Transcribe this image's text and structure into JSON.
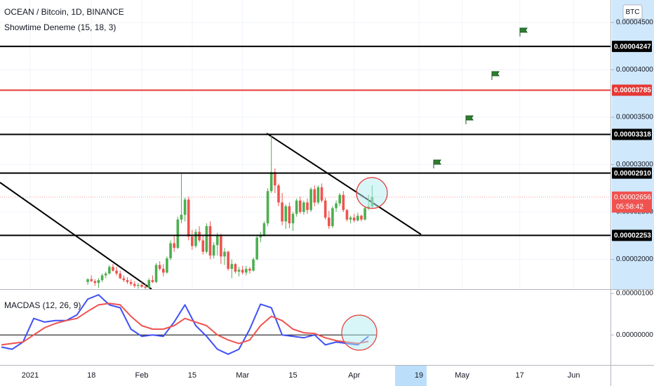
{
  "chart_data": [
    {
      "type": "candlestick",
      "title": "OCEAN / Bitcoin, 1D, BINANCE",
      "indicator": "Showtime Deneme (15, 18, 3)",
      "axis_unit": "BTC",
      "up_color": "#4caf50",
      "down_color": "#ef5350",
      "x": [
        "2021-01-17",
        "2021-01-18",
        "2021-01-19",
        "2021-01-20",
        "2021-01-21",
        "2021-01-22",
        "2021-01-23",
        "2021-01-24",
        "2021-01-25",
        "2021-01-26",
        "2021-01-27",
        "2021-01-28",
        "2021-01-29",
        "2021-01-30",
        "2021-01-31",
        "2021-02-01",
        "2021-02-02",
        "2021-02-03",
        "2021-02-04",
        "2021-02-05",
        "2021-02-06",
        "2021-02-07",
        "2021-02-08",
        "2021-02-09",
        "2021-02-10",
        "2021-02-11",
        "2021-02-12",
        "2021-02-13",
        "2021-02-14",
        "2021-02-15",
        "2021-02-16",
        "2021-02-17",
        "2021-02-18",
        "2021-02-19",
        "2021-02-20",
        "2021-02-21",
        "2021-02-22",
        "2021-02-23",
        "2021-02-24",
        "2021-02-25",
        "2021-02-26",
        "2021-02-27",
        "2021-02-28",
        "2021-03-01",
        "2021-03-02",
        "2021-03-03",
        "2021-03-04",
        "2021-03-05",
        "2021-03-06",
        "2021-03-07",
        "2021-03-08",
        "2021-03-09",
        "2021-03-10",
        "2021-03-11",
        "2021-03-12",
        "2021-03-13",
        "2021-03-14",
        "2021-03-15",
        "2021-03-16",
        "2021-03-17",
        "2021-03-18",
        "2021-03-19",
        "2021-03-20",
        "2021-03-21",
        "2021-03-22",
        "2021-03-23",
        "2021-03-24",
        "2021-03-25",
        "2021-03-26",
        "2021-03-27",
        "2021-03-28",
        "2021-03-29",
        "2021-03-30",
        "2021-03-31",
        "2021-04-01",
        "2021-04-02",
        "2021-04-03",
        "2021-04-04",
        "2021-04-05",
        "2021-04-06"
      ],
      "ohlc": [
        [
          1.76e-05,
          1.8e-05,
          1.73e-05,
          1.79e-05
        ],
        [
          1.79e-05,
          1.83e-05,
          1.76e-05,
          1.77e-05
        ],
        [
          1.77e-05,
          1.79e-05,
          1.72e-05,
          1.75e-05
        ],
        [
          1.75e-05,
          1.8e-05,
          1.7e-05,
          1.78e-05
        ],
        [
          1.78e-05,
          1.85e-05,
          1.76e-05,
          1.83e-05
        ],
        [
          1.83e-05,
          1.87e-05,
          1.8e-05,
          1.85e-05
        ],
        [
          1.85e-05,
          1.94e-05,
          1.84e-05,
          1.92e-05
        ],
        [
          1.92e-05,
          1.95e-05,
          1.87e-05,
          1.88e-05
        ],
        [
          1.88e-05,
          1.92e-05,
          1.83e-05,
          1.85e-05
        ],
        [
          1.85e-05,
          1.88e-05,
          1.79e-05,
          1.8e-05
        ],
        [
          1.8e-05,
          1.83e-05,
          1.76e-05,
          1.78e-05
        ],
        [
          1.78e-05,
          1.81e-05,
          1.74e-05,
          1.76e-05
        ],
        [
          1.76e-05,
          1.79e-05,
          1.72e-05,
          1.74e-05
        ],
        [
          1.74e-05,
          1.77e-05,
          1.7e-05,
          1.72e-05
        ],
        [
          1.72e-05,
          1.75e-05,
          1.69e-05,
          1.73e-05
        ],
        [
          1.73e-05,
          1.76e-05,
          1.7e-05,
          1.71e-05
        ],
        [
          1.71e-05,
          1.74e-05,
          1.68e-05,
          1.7e-05
        ],
        [
          1.7e-05,
          1.8e-05,
          1.69e-05,
          1.78e-05
        ],
        [
          1.78e-05,
          1.83e-05,
          1.75e-05,
          1.76e-05
        ],
        [
          1.76e-05,
          1.96e-05,
          1.75e-05,
          1.94e-05
        ],
        [
          1.94e-05,
          1.98e-05,
          1.88e-05,
          1.9e-05
        ],
        [
          1.9e-05,
          1.95e-05,
          1.82e-05,
          1.86e-05
        ],
        [
          1.86e-05,
          2.03e-05,
          1.85e-05,
          2.01e-05
        ],
        [
          2.01e-05,
          2.2e-05,
          1.99e-05,
          2.17e-05
        ],
        [
          2.17e-05,
          2.26e-05,
          2.08e-05,
          2.12e-05
        ],
        [
          2.12e-05,
          2.45e-05,
          2.11e-05,
          2.42e-05
        ],
        [
          2.42e-05,
          2.9e-05,
          2.38e-05,
          2.47e-05
        ],
        [
          2.47e-05,
          2.65e-05,
          2.4e-05,
          2.63e-05
        ],
        [
          2.63e-05,
          2.66e-05,
          2.2e-05,
          2.24e-05
        ],
        [
          2.24e-05,
          2.31e-05,
          2.1e-05,
          2.14e-05
        ],
        [
          2.14e-05,
          2.32e-05,
          2.12e-05,
          2.29e-05
        ],
        [
          2.29e-05,
          2.35e-05,
          2.18e-05,
          2.2e-05
        ],
        [
          2.2e-05,
          2.26e-05,
          2.05e-05,
          2.08e-05
        ],
        [
          2.08e-05,
          2.38e-05,
          2.06e-05,
          2.35e-05
        ],
        [
          2.35e-05,
          2.4e-05,
          2e-05,
          2.04e-05
        ],
        [
          2.04e-05,
          2.18e-05,
          2.01e-05,
          2.15e-05
        ],
        [
          2.15e-05,
          2.28e-05,
          2.04e-05,
          2.25e-05
        ],
        [
          2.25e-05,
          2.27e-05,
          1.95e-05,
          2.03e-05
        ],
        [
          2.03e-05,
          2.12e-05,
          1.94e-05,
          2.08e-05
        ],
        [
          2.08e-05,
          2.09e-05,
          1.88e-05,
          1.9e-05
        ],
        [
          1.9e-05,
          2e-05,
          1.8e-05,
          1.95e-05
        ],
        [
          1.95e-05,
          1.96e-05,
          1.85e-05,
          1.87e-05
        ],
        [
          1.87e-05,
          1.92e-05,
          1.82e-05,
          1.89e-05
        ],
        [
          1.89e-05,
          1.93e-05,
          1.84e-05,
          1.86e-05
        ],
        [
          1.86e-05,
          1.93e-05,
          1.83e-05,
          1.9e-05
        ],
        [
          1.9e-05,
          1.92e-05,
          1.85e-05,
          1.88e-05
        ],
        [
          1.88e-05,
          2.02e-05,
          1.87e-05,
          2e-05
        ],
        [
          2e-05,
          2.25e-05,
          1.99e-05,
          2.23e-05
        ],
        [
          2.23e-05,
          2.29e-05,
          2.18e-05,
          2.26e-05
        ],
        [
          2.26e-05,
          2.4e-05,
          2.24e-05,
          2.38e-05
        ],
        [
          2.38e-05,
          2.75e-05,
          2.35e-05,
          2.72e-05
        ],
        [
          2.72e-05,
          3.31e-05,
          2.7e-05,
          2.92e-05
        ],
        [
          2.92e-05,
          2.96e-05,
          2.7e-05,
          2.78e-05
        ],
        [
          2.78e-05,
          2.8e-05,
          2.56e-05,
          2.6e-05
        ],
        [
          2.6e-05,
          2.7e-05,
          2.36e-05,
          2.4e-05
        ],
        [
          2.4e-05,
          2.58e-05,
          2.32e-05,
          2.56e-05
        ],
        [
          2.56e-05,
          2.6e-05,
          2.33e-05,
          2.38e-05
        ],
        [
          2.38e-05,
          2.5e-05,
          2.3e-05,
          2.48e-05
        ],
        [
          2.48e-05,
          2.64e-05,
          2.45e-05,
          2.62e-05
        ],
        [
          2.62e-05,
          2.66e-05,
          2.48e-05,
          2.5e-05
        ],
        [
          2.5e-05,
          2.62e-05,
          2.47e-05,
          2.6e-05
        ],
        [
          2.6e-05,
          2.64e-05,
          2.48e-05,
          2.52e-05
        ],
        [
          2.52e-05,
          2.76e-05,
          2.5e-05,
          2.74e-05
        ],
        [
          2.74e-05,
          2.78e-05,
          2.56e-05,
          2.6e-05
        ],
        [
          2.6e-05,
          2.78e-05,
          2.58e-05,
          2.76e-05
        ],
        [
          2.76e-05,
          2.8e-05,
          2.6e-05,
          2.62e-05
        ],
        [
          2.62e-05,
          2.65e-05,
          2.42e-05,
          2.44e-05
        ],
        [
          2.44e-05,
          2.51e-05,
          2.32e-05,
          2.35e-05
        ],
        [
          2.35e-05,
          2.56e-05,
          2.33e-05,
          2.54e-05
        ],
        [
          2.54e-05,
          2.62e-05,
          2.5e-05,
          2.59e-05
        ],
        [
          2.59e-05,
          2.7e-05,
          2.56e-05,
          2.68e-05
        ],
        [
          2.68e-05,
          2.72e-05,
          2.5e-05,
          2.52e-05
        ],
        [
          2.52e-05,
          2.53e-05,
          2.4e-05,
          2.42e-05
        ],
        [
          2.42e-05,
          2.46e-05,
          2.38e-05,
          2.44e-05
        ],
        [
          2.44e-05,
          2.48e-05,
          2.39e-05,
          2.41e-05
        ],
        [
          2.41e-05,
          2.49e-05,
          2.4e-05,
          2.46e-05
        ],
        [
          2.46e-05,
          2.47e-05,
          2.4e-05,
          2.42e-05
        ],
        [
          2.42e-05,
          2.56e-05,
          2.41e-05,
          2.54e-05
        ],
        [
          2.54e-05,
          2.68e-05,
          2.52e-05,
          2.56e-05
        ],
        [
          2.56e-05,
          2.78e-05,
          2.54e-05,
          2.656e-05
        ]
      ],
      "ylim": [
        1.685e-05,
        4.737e-05
      ],
      "yticks": [
        {
          "value": 4.5e-05,
          "label": "0.00004500"
        },
        {
          "value": 4e-05,
          "label": "0.00004000"
        },
        {
          "value": 3.5e-05,
          "label": "0.00003500"
        },
        {
          "value": 3e-05,
          "label": "0.00003000"
        },
        {
          "value": 2.5e-05,
          "label": "0.00002500"
        },
        {
          "value": 2e-05,
          "label": "0.00002000"
        }
      ],
      "levels": [
        {
          "value": 4.247e-05,
          "label": "0.00004247",
          "color": "#000000"
        },
        {
          "value": 3.785e-05,
          "label": "0.00003785",
          "color": "#e53935"
        },
        {
          "value": 3.318e-05,
          "label": "0.00003318",
          "color": "#000000"
        },
        {
          "value": 2.91e-05,
          "label": "0.00002910",
          "color": "#000000"
        },
        {
          "value": 2.253e-05,
          "label": "0.00002253",
          "color": "#000000"
        }
      ],
      "last_price": {
        "value": 2.656e-05,
        "label": "0.00002656",
        "countdown": "05:58:42",
        "color": "#ef5350"
      },
      "xticks": [
        {
          "value": "2021-01-01",
          "label": "2021"
        },
        {
          "value": "2021-01-18",
          "label": "18"
        },
        {
          "value": "2021-02-01",
          "label": "Feb"
        },
        {
          "value": "2021-02-15",
          "label": "15"
        },
        {
          "value": "2021-03-01",
          "label": "Mar"
        },
        {
          "value": "2021-03-15",
          "label": "15"
        },
        {
          "value": "2021-04-01",
          "label": "Apr"
        },
        {
          "value": "2021-04-19",
          "label": "19"
        },
        {
          "value": "2021-05-01",
          "label": "May"
        },
        {
          "value": "2021-05-17",
          "label": "17"
        },
        {
          "value": "2021-06-01",
          "label": "Jun"
        }
      ],
      "grid": true
    },
    {
      "type": "line",
      "title": "MACDAS (12, 26, 9)",
      "x": [
        "2020-12-24",
        "2020-12-27",
        "2020-12-30",
        "2021-01-02",
        "2021-01-05",
        "2021-01-08",
        "2021-01-11",
        "2021-01-14",
        "2021-01-17",
        "2021-01-20",
        "2021-01-23",
        "2021-01-26",
        "2021-01-29",
        "2021-02-01",
        "2021-02-04",
        "2021-02-07",
        "2021-02-10",
        "2021-02-13",
        "2021-02-16",
        "2021-02-19",
        "2021-02-22",
        "2021-02-25",
        "2021-02-28",
        "2021-03-03",
        "2021-03-06",
        "2021-03-09",
        "2021-03-12",
        "2021-03-15",
        "2021-03-18",
        "2021-03-21",
        "2021-03-24",
        "2021-03-27",
        "2021-03-30",
        "2021-04-02",
        "2021-04-05"
      ],
      "series": [
        {
          "color": "#3f51f5",
          "values": [
            -2.93e-07,
            -3.45e-07,
            -1.72e-07,
            3.97e-07,
            3.1e-07,
            3.45e-07,
            3.45e-07,
            4.83e-07,
            8.62e-07,
            9.66e-07,
            7.24e-07,
            6.55e-07,
            1.38e-07,
            -3.4e-08,
            0,
            -3.4e-08,
            3.1e-07,
            7.24e-07,
            2.24e-07,
            -3.4e-08,
            -3.45e-07,
            -4.66e-07,
            -3.45e-07,
            1.38e-07,
            7.41e-07,
            6.55e-07,
            0,
            -3.4e-08,
            -6.9e-08,
            0,
            -2.41e-07,
            -1.72e-07,
            -2.07e-07,
            -2.41e-07,
            -3.4e-08
          ]
        },
        {
          "color": "#ef5350",
          "values": [
            -2.41e-07,
            -2.07e-07,
            -1.72e-07,
            0,
            1.72e-07,
            2.76e-07,
            3.45e-07,
            3.97e-07,
            5.69e-07,
            7.24e-07,
            7.59e-07,
            7.24e-07,
            4.48e-07,
            2.24e-07,
            1.38e-07,
            1.38e-07,
            2.24e-07,
            3.97e-07,
            3.1e-07,
            2.24e-07,
            0,
            -1.21e-07,
            -2.07e-07,
            -1.21e-07,
            2.24e-07,
            4.48e-07,
            3.45e-07,
            1.38e-07,
            5.2e-08,
            3.4e-08,
            -6.9e-08,
            -1.38e-07,
            -1.72e-07,
            -2.07e-07,
            -1.55e-07
          ]
        }
      ],
      "ylim": [
        -7.24e-07,
        1.086e-06
      ],
      "yticks": [
        {
          "value": 1e-06,
          "label": "0.00000100"
        },
        {
          "value": 0,
          "label": "0.00000000"
        }
      ]
    }
  ]
}
